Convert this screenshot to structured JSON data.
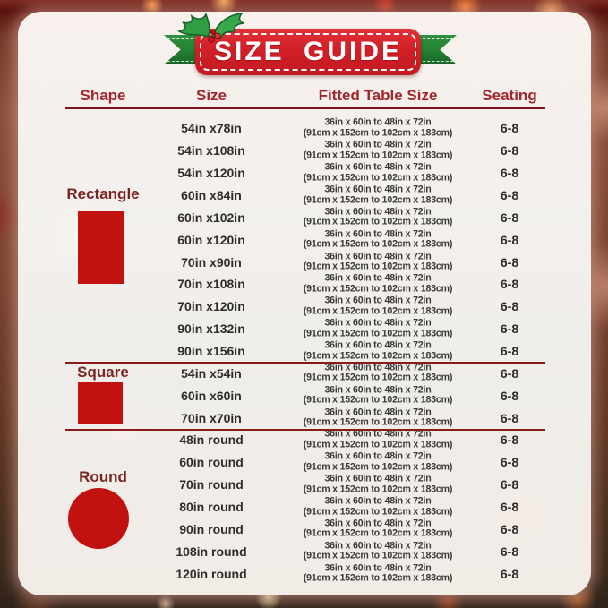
{
  "banner": {
    "title": "SIZE GUIDE"
  },
  "colors": {
    "banner_red": "#d21f27",
    "ribbon_green": "#238033",
    "header_text": "#a2262b",
    "section_text": "#7b2422",
    "shape_icon_red": "#c11210",
    "divider_red": "#8a1b1c",
    "body_text": "#2e2d2b"
  },
  "table": {
    "headers": {
      "shape": "Shape",
      "size": "Size",
      "fitted": "Fitted Table Size",
      "seating": "Seating"
    },
    "sections": [
      {
        "name": "Rectangle",
        "icon": "rectangle-shape",
        "rows": [
          {
            "size": "54in x78in",
            "fitted_line1": "36in x 60in to 48in x 72in",
            "fitted_line2": "(91cm x 152cm to 102cm x 183cm)",
            "seating": "6-8"
          },
          {
            "size": "54in x108in",
            "fitted_line1": "36in x 60in to 48in x 72in",
            "fitted_line2": "(91cm x 152cm to 102cm x 183cm)",
            "seating": "6-8"
          },
          {
            "size": "54in x120in",
            "fitted_line1": "36in x 60in to 48in x 72in",
            "fitted_line2": "(91cm x 152cm to 102cm x 183cm)",
            "seating": "6-8"
          },
          {
            "size": "60in x84in",
            "fitted_line1": "36in x 60in to 48in x 72in",
            "fitted_line2": "(91cm x 152cm to 102cm x 183cm)",
            "seating": "6-8"
          },
          {
            "size": "60in x102in",
            "fitted_line1": "36in x 60in to 48in x 72in",
            "fitted_line2": "(91cm x 152cm to 102cm x 183cm)",
            "seating": "6-8"
          },
          {
            "size": "60in x120in",
            "fitted_line1": "36in x 60in to 48in x 72in",
            "fitted_line2": "(91cm x 152cm to 102cm x 183cm)",
            "seating": "6-8"
          },
          {
            "size": "70in x90in",
            "fitted_line1": "36in x 60in to 48in x 72in",
            "fitted_line2": "(91cm x 152cm to 102cm x 183cm)",
            "seating": "6-8"
          },
          {
            "size": "70in x108in",
            "fitted_line1": "36in x 60in to 48in x 72in",
            "fitted_line2": "(91cm x 152cm to 102cm x 183cm)",
            "seating": "6-8"
          },
          {
            "size": "70in x120in",
            "fitted_line1": "36in x 60in to 48in x 72in",
            "fitted_line2": "(91cm x 152cm to 102cm x 183cm)",
            "seating": "6-8"
          },
          {
            "size": "90in x132in",
            "fitted_line1": "36in x 60in to 48in x 72in",
            "fitted_line2": "(91cm x 152cm to 102cm x 183cm)",
            "seating": "6-8"
          },
          {
            "size": "90in x156in",
            "fitted_line1": "36in x 60in to 48in x 72in",
            "fitted_line2": "(91cm x 152cm to 102cm x 183cm)",
            "seating": "6-8"
          }
        ]
      },
      {
        "name": "Square",
        "icon": "square-shape",
        "rows": [
          {
            "size": "54in x54in",
            "fitted_line1": "36in x 60in to 48in x 72in",
            "fitted_line2": "(91cm x 152cm to 102cm x 183cm)",
            "seating": "6-8"
          },
          {
            "size": "60in x60in",
            "fitted_line1": "36in x 60in to 48in x 72in",
            "fitted_line2": "(91cm x 152cm to 102cm x 183cm)",
            "seating": "6-8"
          },
          {
            "size": "70in x70in",
            "fitted_line1": "36in x 60in to 48in x 72in",
            "fitted_line2": "(91cm x 152cm to 102cm x 183cm)",
            "seating": "6-8"
          }
        ]
      },
      {
        "name": "Round",
        "icon": "circle-shape",
        "rows": [
          {
            "size": "48in round",
            "fitted_line1": "36in x 60in to 48in x 72in",
            "fitted_line2": "(91cm x 152cm to 102cm x 183cm)",
            "seating": "6-8"
          },
          {
            "size": "60in round",
            "fitted_line1": "36in x 60in to 48in x 72in",
            "fitted_line2": "(91cm x 152cm to 102cm x 183cm)",
            "seating": "6-8"
          },
          {
            "size": "70in round",
            "fitted_line1": "36in x 60in to 48in x 72in",
            "fitted_line2": "(91cm x 152cm to 102cm x 183cm)",
            "seating": "6-8"
          },
          {
            "size": "80in round",
            "fitted_line1": "36in x 60in to 48in x 72in",
            "fitted_line2": "(91cm x 152cm to 102cm x 183cm)",
            "seating": "6-8"
          },
          {
            "size": "90in round",
            "fitted_line1": "36in x 60in to 48in x 72in",
            "fitted_line2": "(91cm x 152cm to 102cm x 183cm)",
            "seating": "6-8"
          },
          {
            "size": "108in round",
            "fitted_line1": "36in x 60in to 48in x 72in",
            "fitted_line2": "(91cm x 152cm to 102cm x 183cm)",
            "seating": "6-8"
          },
          {
            "size": "120in round",
            "fitted_line1": "36in x 60in to 48in x 72in",
            "fitted_line2": "(91cm x 152cm to 102cm x 183cm)",
            "seating": "6-8"
          }
        ]
      }
    ]
  }
}
